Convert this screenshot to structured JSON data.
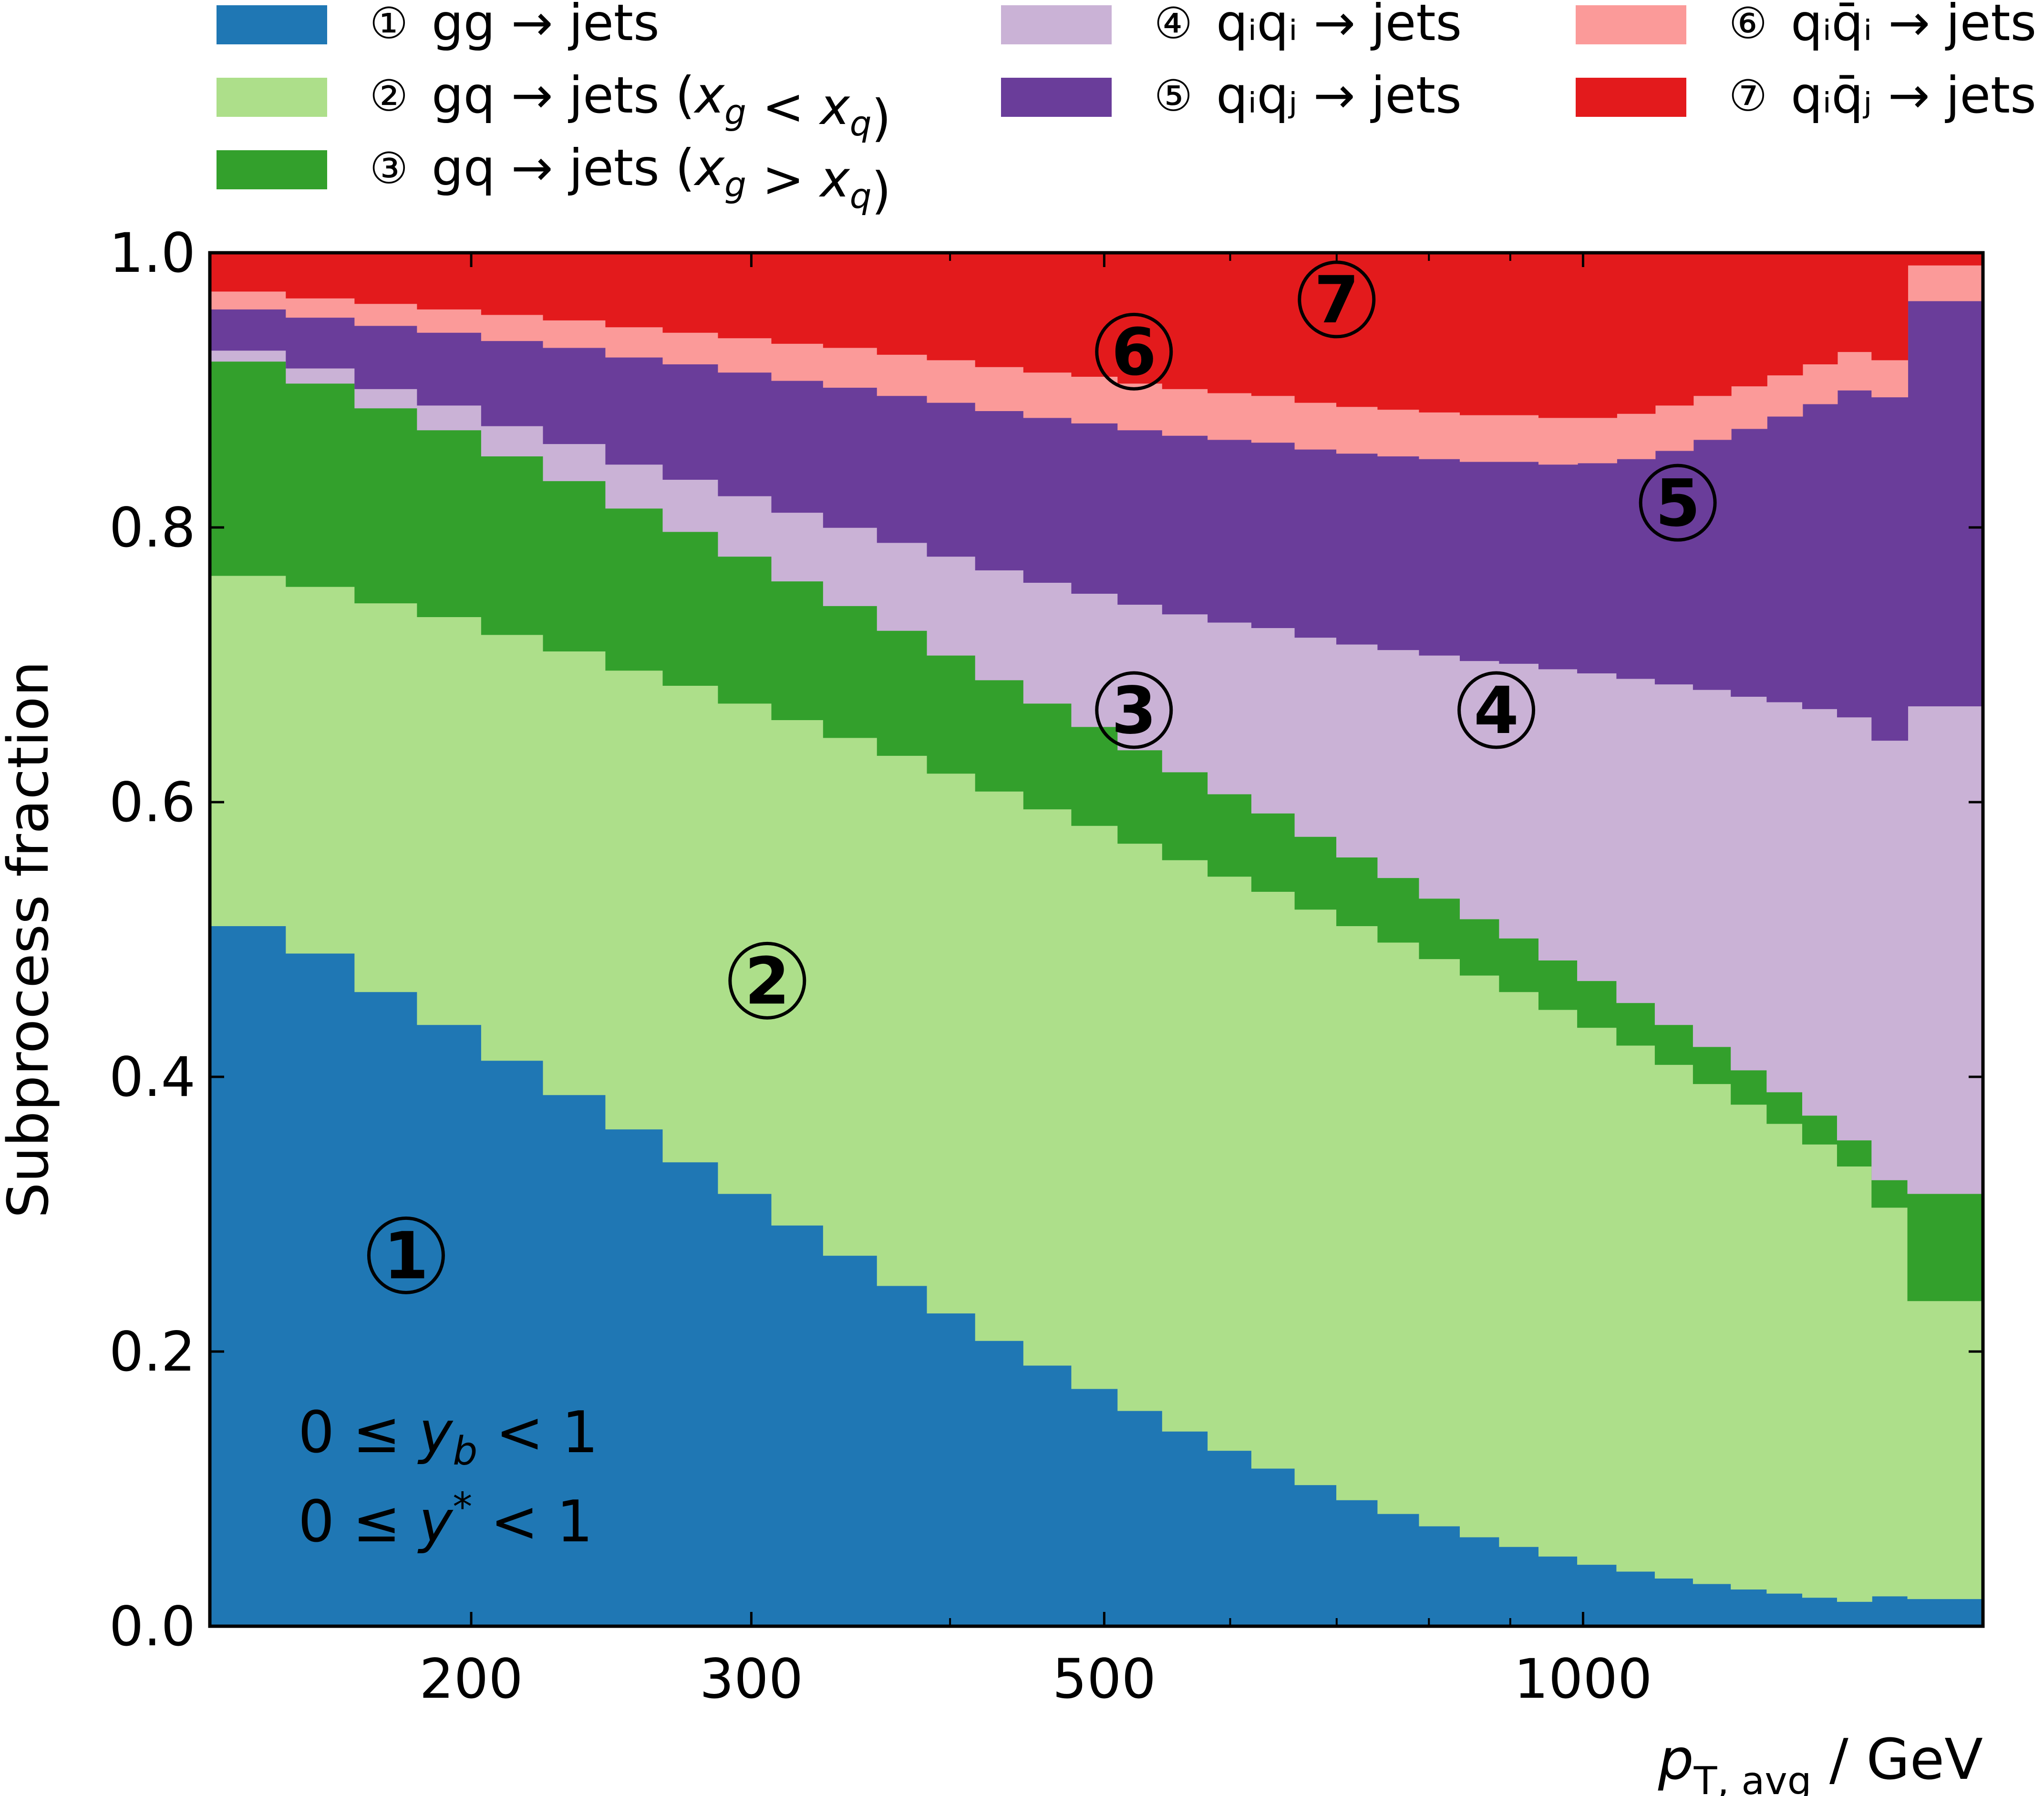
{
  "chart_data": {
    "type": "area",
    "stacked": true,
    "step": true,
    "xscale": "log",
    "xlim": [
      137,
      1784
    ],
    "ylim": [
      0.0,
      1.0
    ],
    "grid": false,
    "legend_position": "top (above plot, 3 columns)",
    "xlabel_base": "p",
    "xlabel_sub": "T, avg",
    "xlabel_unit": " / GeV",
    "ylabel": "Subprocess fraction",
    "x_ticks": [
      {
        "value": 200,
        "label": "200"
      },
      {
        "value": 300,
        "label": "300"
      },
      {
        "value": 500,
        "label": "500"
      },
      {
        "value": 1000,
        "label": "1000"
      }
    ],
    "x_minor_ticks": [
      400,
      600,
      700,
      800,
      900
    ],
    "y_ticks": [
      {
        "value": 0.0,
        "label": "0.0"
      },
      {
        "value": 0.2,
        "label": "0.2"
      },
      {
        "value": 0.4,
        "label": "0.4"
      },
      {
        "value": 0.6,
        "label": "0.6"
      },
      {
        "value": 0.8,
        "label": "0.8"
      },
      {
        "value": 1.0,
        "label": "1.0"
      }
    ],
    "bin_edges": [
      137,
      153,
      169,
      185,
      203,
      222,
      243,
      264,
      286,
      309,
      333,
      360,
      387,
      415,
      445,
      477,
      510,
      544,
      581,
      619,
      659,
      700,
      743,
      789,
      837,
      886,
      938,
      992,
      1050,
      1110,
      1173,
      1239,
      1305,
      1374,
      1445,
      1519,
      1600,
      1784
    ],
    "series": [
      {
        "name": "① gg → jets",
        "color": "#1f77b4",
        "values": [
          0.51,
          0.49,
          0.462,
          0.438,
          0.412,
          0.387,
          0.362,
          0.338,
          0.315,
          0.292,
          0.27,
          0.248,
          0.228,
          0.208,
          0.19,
          0.173,
          0.157,
          0.142,
          0.128,
          0.115,
          0.103,
          0.092,
          0.082,
          0.073,
          0.065,
          0.058,
          0.051,
          0.045,
          0.04,
          0.035,
          0.031,
          0.027,
          0.024,
          0.021,
          0.018,
          0.022,
          0.02
        ]
      },
      {
        "name": "② gq → jets (x_g < x_q)",
        "color": "#addf8a",
        "values": [
          0.255,
          0.267,
          0.283,
          0.297,
          0.31,
          0.323,
          0.334,
          0.347,
          0.357,
          0.368,
          0.377,
          0.386,
          0.393,
          0.4,
          0.405,
          0.41,
          0.413,
          0.416,
          0.418,
          0.42,
          0.419,
          0.418,
          0.416,
          0.413,
          0.409,
          0.404,
          0.398,
          0.391,
          0.383,
          0.374,
          0.364,
          0.353,
          0.342,
          0.33,
          0.317,
          0.283,
          0.217
        ]
      },
      {
        "name": "③ gq → jets (x_g > x_q)",
        "color": "#33a02c",
        "values": [
          0.156,
          0.148,
          0.142,
          0.136,
          0.13,
          0.124,
          0.118,
          0.112,
          0.107,
          0.101,
          0.096,
          0.091,
          0.086,
          0.081,
          0.077,
          0.072,
          0.068,
          0.064,
          0.06,
          0.057,
          0.053,
          0.05,
          0.047,
          0.044,
          0.041,
          0.039,
          0.036,
          0.034,
          0.031,
          0.029,
          0.027,
          0.025,
          0.023,
          0.021,
          0.019,
          0.02,
          0.078
        ]
      },
      {
        "name": "④ qᵢqᵢ → jets",
        "color": "#cab2d6",
        "values": [
          0.008,
          0.011,
          0.014,
          0.018,
          0.022,
          0.027,
          0.032,
          0.038,
          0.044,
          0.05,
          0.057,
          0.064,
          0.072,
          0.08,
          0.088,
          0.097,
          0.106,
          0.115,
          0.125,
          0.135,
          0.145,
          0.155,
          0.166,
          0.177,
          0.188,
          0.2,
          0.212,
          0.224,
          0.236,
          0.248,
          0.26,
          0.272,
          0.284,
          0.296,
          0.308,
          0.32,
          0.355
        ]
      },
      {
        "name": "⑤ qᵢqⱼ → jets",
        "color": "#6a3d9a",
        "values": [
          0.03,
          0.037,
          0.046,
          0.053,
          0.062,
          0.07,
          0.078,
          0.084,
          0.09,
          0.096,
          0.102,
          0.107,
          0.112,
          0.116,
          0.12,
          0.124,
          0.127,
          0.13,
          0.133,
          0.135,
          0.137,
          0.139,
          0.141,
          0.143,
          0.145,
          0.147,
          0.149,
          0.153,
          0.16,
          0.17,
          0.182,
          0.195,
          0.208,
          0.222,
          0.238,
          0.25,
          0.295
        ]
      },
      {
        "name": "⑥ qᵢq̄ᵢ → jets",
        "color": "#fb9a99",
        "values": [
          0.013,
          0.014,
          0.016,
          0.017,
          0.019,
          0.02,
          0.022,
          0.023,
          0.025,
          0.027,
          0.029,
          0.03,
          0.031,
          0.032,
          0.033,
          0.034,
          0.034,
          0.034,
          0.034,
          0.034,
          0.034,
          0.034,
          0.034,
          0.034,
          0.034,
          0.034,
          0.034,
          0.033,
          0.033,
          0.033,
          0.032,
          0.031,
          0.03,
          0.029,
          0.028,
          0.027,
          0.026
        ]
      },
      {
        "name": "⑦ qᵢq̄ⱼ → jets",
        "color": "#e31a1c",
        "values": [
          0.028,
          0.033,
          0.037,
          0.041,
          0.045,
          0.049,
          0.054,
          0.058,
          0.062,
          0.066,
          0.069,
          0.074,
          0.078,
          0.083,
          0.087,
          0.09,
          0.095,
          0.099,
          0.102,
          0.104,
          0.109,
          0.112,
          0.114,
          0.116,
          0.118,
          0.118,
          0.12,
          0.119,
          0.117,
          0.111,
          0.104,
          0.097,
          0.089,
          0.081,
          0.072,
          0.078,
          0.009
        ]
      }
    ],
    "legend_entries": [
      {
        "num": "①",
        "label": "gg → jets",
        "color": "#1f77b4"
      },
      {
        "num": "②",
        "label": "gq → jets (x_g < x_q)",
        "color": "#addf8a"
      },
      {
        "num": "③",
        "label": "gq → jets (x_g > x_q)",
        "color": "#33a02c"
      },
      {
        "num": "④",
        "label": "qᵢqᵢ → jets",
        "color": "#cab2d6"
      },
      {
        "num": "⑤",
        "label": "qᵢqⱼ → jets",
        "color": "#6a3d9a"
      },
      {
        "num": "⑥",
        "label": "qᵢq̄ᵢ → jets",
        "color": "#fb9a99"
      },
      {
        "num": "⑦",
        "label": "qᵢq̄ⱼ → jets",
        "color": "#e31a1c"
      }
    ],
    "area_labels": [
      {
        "text": "1",
        "x": 182,
        "y": 0.27
      },
      {
        "text": "2",
        "x": 307,
        "y": 0.47
      },
      {
        "text": "3",
        "x": 522,
        "y": 0.667
      },
      {
        "text": "4",
        "x": 882,
        "y": 0.667
      },
      {
        "text": "5",
        "x": 1147,
        "y": 0.818
      },
      {
        "text": "6",
        "x": 522,
        "y": 0.928
      },
      {
        "text": "7",
        "x": 700,
        "y": 0.966
      }
    ],
    "annotations": [
      {
        "text": "0 ≤ y_b < 1"
      },
      {
        "text": "0 ≤ y* < 1"
      }
    ]
  }
}
